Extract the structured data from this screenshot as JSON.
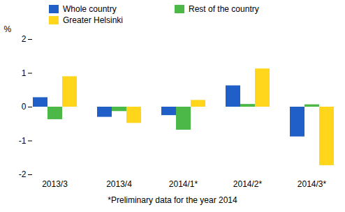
{
  "chart_data": {
    "type": "bar",
    "y_label": "%",
    "caption": "*Preliminary data for the year 2014",
    "categories": [
      "2013/3",
      "2013/4",
      "2014/1*",
      "2014/2*",
      "2014/3*"
    ],
    "series": [
      {
        "name": "Whole country",
        "color": "#1f5fc7",
        "values": [
          0.28,
          -0.3,
          -0.25,
          0.63,
          -0.88
        ]
      },
      {
        "name": "Rest of the country",
        "color": "#4cb848",
        "values": [
          -0.37,
          -0.13,
          -0.68,
          0.08,
          0.07
        ]
      },
      {
        "name": "Greater Helsinki",
        "color": "#ffd61c",
        "values": [
          0.9,
          -0.48,
          0.2,
          1.13,
          -1.73
        ]
      }
    ],
    "legend": "top",
    "ylim": [
      -2,
      2
    ],
    "yticks": [
      -2,
      -1,
      0,
      1,
      2
    ],
    "grid": false
  }
}
